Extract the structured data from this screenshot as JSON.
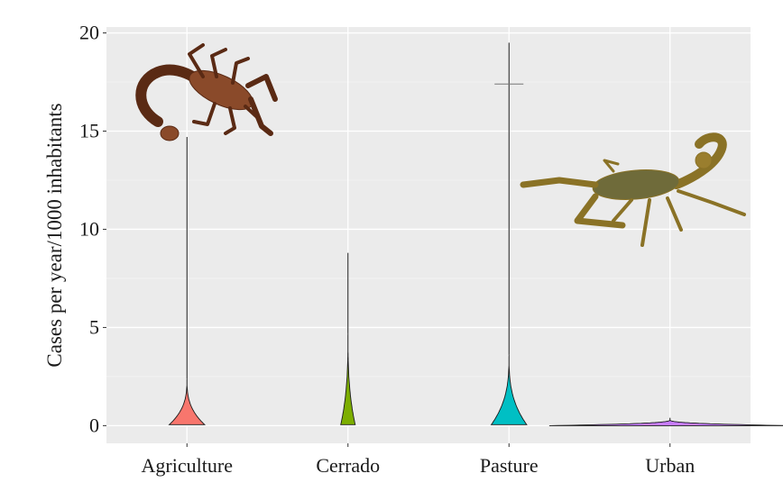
{
  "chart_data": {
    "type": "violin",
    "categories": [
      "Agriculture",
      "Cerrado",
      "Pasture",
      "Urban"
    ],
    "ylabel": "Cases per year/1000 inhabitants",
    "xlabel": "",
    "ylim": [
      -0.9,
      20.3
    ],
    "yticks": [
      0,
      5,
      10,
      15,
      20
    ],
    "grid": true,
    "series": [
      {
        "category": "Agriculture",
        "color": "#F8766D",
        "min": 0.05,
        "max": 14.7,
        "violin_top": 2.4,
        "max_half_width": 0.11
      },
      {
        "category": "Cerrado",
        "color": "#7CAE00",
        "min": 0.05,
        "max": 8.8,
        "violin_top": 4.7,
        "max_half_width": 0.045
      },
      {
        "category": "Pasture",
        "color": "#00BFC4",
        "min": 0.05,
        "max": 19.5,
        "violin_top": 3.6,
        "max_half_width": 0.11,
        "outlier": 17.4
      },
      {
        "category": "Urban",
        "color": "#C77CFF",
        "min": 0.0,
        "max": 0.4,
        "violin_top": 0.3,
        "max_half_width": 0.75
      }
    ],
    "images": [
      {
        "name": "brown-scorpion-photo",
        "placement": "top-left"
      },
      {
        "name": "yellow-scorpion-photo",
        "placement": "right"
      }
    ]
  }
}
